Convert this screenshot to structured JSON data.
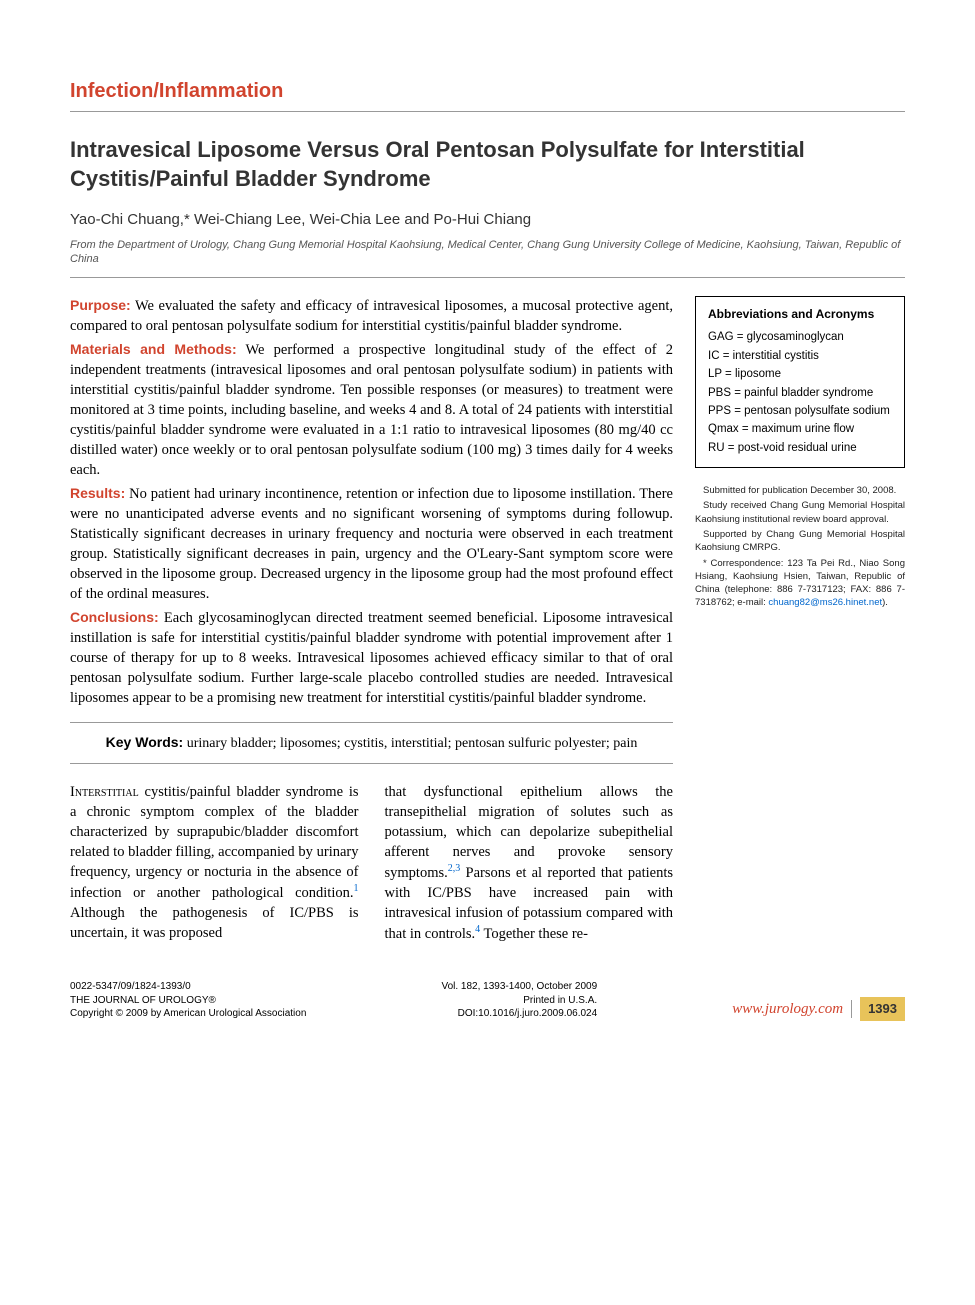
{
  "section_header": "Infection/Inflammation",
  "title": "Intravesical Liposome Versus Oral Pentosan Polysulfate for Interstitial Cystitis/Painful Bladder Syndrome",
  "authors": "Yao-Chi Chuang,* Wei-Chiang Lee, Wei-Chia Lee and Po-Hui Chiang",
  "affiliation": "From the Department of Urology, Chang Gung Memorial Hospital Kaohsiung, Medical Center, Chang Gung University College of Medicine, Kaohsiung, Taiwan, Republic of China",
  "abstract": {
    "purpose": {
      "label": "Purpose:",
      "text": " We evaluated the safety and efficacy of intravesical liposomes, a mucosal protective agent, compared to oral pentosan polysulfate sodium for interstitial cystitis/painful bladder syndrome."
    },
    "methods": {
      "label": "Materials and Methods:",
      "text": " We performed a prospective longitudinal study of the effect of 2 independent treatments (intravesical liposomes and oral pentosan polysulfate sodium) in patients with interstitial cystitis/painful bladder syndrome. Ten possible responses (or measures) to treatment were monitored at 3 time points, including baseline, and weeks 4 and 8. A total of 24 patients with interstitial cystitis/painful bladder syndrome were evaluated in a 1:1 ratio to intravesical liposomes (80 mg/40 cc distilled water) once weekly or to oral pentosan polysulfate sodium (100 mg) 3 times daily for 4 weeks each."
    },
    "results": {
      "label": "Results:",
      "text": " No patient had urinary incontinence, retention or infection due to liposome instillation. There were no unanticipated adverse events and no significant worsening of symptoms during followup. Statistically significant decreases in urinary frequency and nocturia were observed in each treatment group. Statistically significant decreases in pain, urgency and the O'Leary-Sant symptom score were observed in the liposome group. Decreased urgency in the liposome group had the most profound effect of the ordinal measures."
    },
    "conclusions": {
      "label": "Conclusions:",
      "text": " Each glycosaminoglycan directed treatment seemed beneficial. Liposome intravesical instillation is safe for interstitial cystitis/painful bladder syndrome with potential improvement after 1 course of therapy for up to 8 weeks. Intravesical liposomes achieved efficacy similar to that of oral pentosan polysulfate sodium. Further large-scale placebo controlled studies are needed. Intravesical liposomes appear to be a promising new treatment for interstitial cystitis/painful bladder syndrome."
    }
  },
  "abbrev": {
    "title": "Abbreviations and Acronyms",
    "items": [
      "GAG = glycosaminoglycan",
      "IC = interstitial cystitis",
      "LP = liposome",
      "PBS = painful bladder syndrome",
      "PPS = pentosan polysulfate sodium",
      "Qmax = maximum urine flow",
      "RU = post-void residual urine"
    ]
  },
  "submission": {
    "line1": "Submitted for publication December 30, 2008.",
    "line2": "Study received Chang Gung Memorial Hospital Kaohsiung institutional review board approval.",
    "line3": "Supported by Chang Gung Memorial Hospital Kaohsiung CMRPG.",
    "line4_pre": "* Correspondence: 123 Ta Pei Rd., Niao Song Hsiang, Kaohsiung Hsien, Taiwan, Republic of China (telephone: 886 7-7317123; FAX: 886 7-7318762; e-mail: ",
    "email": "chuang82@ms26.hinet.net",
    "line4_post": ")."
  },
  "keywords": {
    "label": "Key Words:",
    "text": " urinary bladder; liposomes; cystitis, interstitial; pentosan sulfuric polyester; pain"
  },
  "body": {
    "col1_lead": "Interstitial",
    "col1_rest": " cystitis/painful bladder syndrome is a chronic symptom complex of the bladder characterized by suprapubic/bladder discomfort related to bladder filling, accompanied by urinary frequency, urgency or nocturia in the absence of infection or another pathological condition.",
    "col1_ref1": "1",
    "col1_tail": " Although the pathogenesis of IC/PBS is uncertain, it was proposed",
    "col2_pre": "that dysfunctional epithelium allows the transepithelial migration of solutes such as potassium, which can depolarize subepithelial afferent nerves and provoke sensory symptoms.",
    "col2_ref23": "2,3",
    "col2_mid": " Parsons et al reported that patients with IC/PBS have increased pain with intravesical infusion of potassium compared with that in controls.",
    "col2_ref4": "4",
    "col2_tail": " Together these re-"
  },
  "footer": {
    "left_line1": "0022-5347/09/1824-1393/0",
    "left_line2": "THE JOURNAL OF UROLOGY®",
    "left_line3": "Copyright © 2009 by American Urological Association",
    "center_line1": "Vol. 182, 1393-1400, October 2009",
    "center_line2": "Printed in U.S.A.",
    "center_line3": "DOI:10.1016/j.juro.2009.06.024",
    "url": "www.jurology.com",
    "page": "1393"
  },
  "colors": {
    "accent": "#d1442e",
    "link": "#0066cc",
    "page_badge_bg": "#e8c35a"
  }
}
